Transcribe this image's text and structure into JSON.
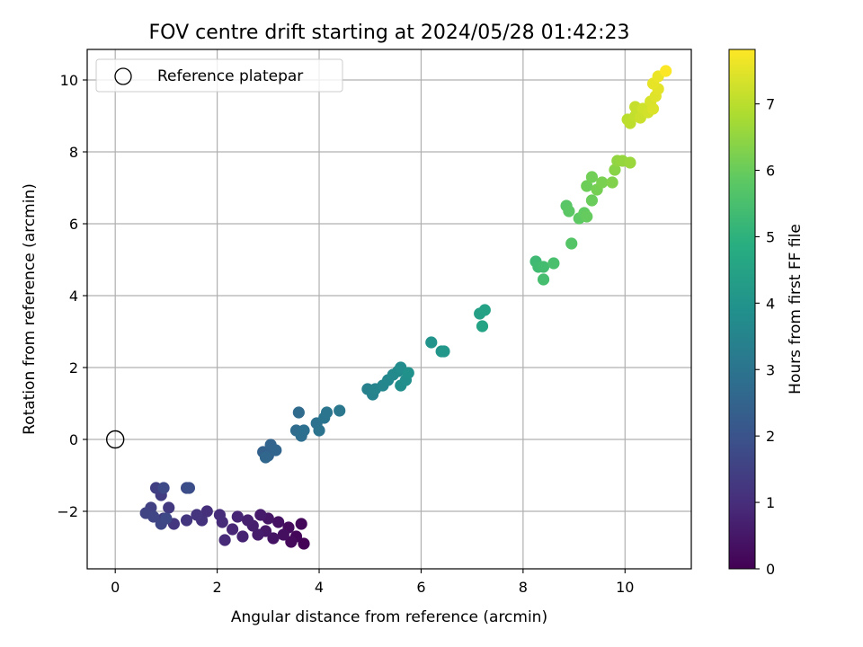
{
  "chart_data": {
    "type": "scatter",
    "title": "FOV centre drift starting at 2024/05/28 01:42:23",
    "xlabel": "Angular distance from reference (arcmin)",
    "ylabel": "Rotation from reference (arcmin)",
    "xlim": [
      -0.55,
      11.3
    ],
    "ylim": [
      -3.6,
      10.85
    ],
    "xticks": [
      0,
      2,
      4,
      6,
      8,
      10
    ],
    "yticks": [
      -2,
      0,
      2,
      4,
      6,
      8,
      10
    ],
    "xtick_labels": [
      "0",
      "2",
      "4",
      "6",
      "8",
      "10"
    ],
    "ytick_labels": [
      "−2",
      "0",
      "2",
      "4",
      "6",
      "8",
      "10"
    ],
    "grid": true,
    "legend": {
      "position": "upper-left",
      "entries": [
        "Reference platepar"
      ]
    },
    "reference_point": {
      "x": 0,
      "y": 0
    },
    "colorbar": {
      "label": "Hours from first FF file",
      "range": [
        0,
        7.82
      ],
      "ticks": [
        0,
        1,
        2,
        3,
        4,
        5,
        6,
        7
      ],
      "tick_labels": [
        "0",
        "1",
        "2",
        "3",
        "4",
        "5",
        "6",
        "7"
      ],
      "colormap": "viridis"
    },
    "series": [
      {
        "points": [
          {
            "x": 3.7,
            "y": -2.9,
            "h": 0.05
          },
          {
            "x": 3.55,
            "y": -2.7,
            "h": 0.1
          },
          {
            "x": 3.65,
            "y": -2.35,
            "h": 0.15
          },
          {
            "x": 3.45,
            "y": -2.85,
            "h": 0.2
          },
          {
            "x": 3.4,
            "y": -2.45,
            "h": 0.25
          },
          {
            "x": 3.3,
            "y": -2.65,
            "h": 0.3
          },
          {
            "x": 3.2,
            "y": -2.3,
            "h": 0.35
          },
          {
            "x": 3.1,
            "y": -2.75,
            "h": 0.4
          },
          {
            "x": 3.0,
            "y": -2.2,
            "h": 0.45
          },
          {
            "x": 2.95,
            "y": -2.55,
            "h": 0.5
          },
          {
            "x": 2.85,
            "y": -2.1,
            "h": 0.55
          },
          {
            "x": 2.8,
            "y": -2.65,
            "h": 0.6
          },
          {
            "x": 2.7,
            "y": -2.4,
            "h": 0.65
          },
          {
            "x": 2.6,
            "y": -2.25,
            "h": 0.7
          },
          {
            "x": 2.5,
            "y": -2.7,
            "h": 0.75
          },
          {
            "x": 2.4,
            "y": -2.15,
            "h": 0.8
          },
          {
            "x": 2.3,
            "y": -2.5,
            "h": 0.85
          },
          {
            "x": 2.15,
            "y": -2.8,
            "h": 0.9
          },
          {
            "x": 2.1,
            "y": -2.3,
            "h": 0.95
          },
          {
            "x": 2.05,
            "y": -2.1,
            "h": 1.0
          },
          {
            "x": 1.8,
            "y": -2.0,
            "h": 1.05
          },
          {
            "x": 1.7,
            "y": -2.25,
            "h": 1.1
          },
          {
            "x": 1.6,
            "y": -2.1,
            "h": 1.15
          },
          {
            "x": 1.4,
            "y": -2.25,
            "h": 1.2
          },
          {
            "x": 1.15,
            "y": -2.35,
            "h": 1.25
          },
          {
            "x": 1.05,
            "y": -1.9,
            "h": 1.3
          },
          {
            "x": 0.95,
            "y": -2.2,
            "h": 1.35
          },
          {
            "x": 0.9,
            "y": -1.55,
            "h": 1.4
          },
          {
            "x": 0.8,
            "y": -1.35,
            "h": 1.45
          },
          {
            "x": 0.7,
            "y": -1.9,
            "h": 1.5
          },
          {
            "x": 0.6,
            "y": -2.05,
            "h": 1.55
          },
          {
            "x": 0.75,
            "y": -2.15,
            "h": 1.6
          },
          {
            "x": 0.9,
            "y": -2.35,
            "h": 1.65
          },
          {
            "x": 1.0,
            "y": -2.2,
            "h": 1.7
          },
          {
            "x": 0.95,
            "y": -1.35,
            "h": 1.75
          },
          {
            "x": 1.4,
            "y": -1.35,
            "h": 1.8
          },
          {
            "x": 1.45,
            "y": -1.35,
            "h": 1.85
          },
          {
            "x": 2.9,
            "y": -0.35,
            "h": 2.4
          },
          {
            "x": 3.0,
            "y": -0.45,
            "h": 2.45
          },
          {
            "x": 3.05,
            "y": -0.15,
            "h": 2.5
          },
          {
            "x": 3.15,
            "y": -0.3,
            "h": 2.55
          },
          {
            "x": 2.95,
            "y": -0.5,
            "h": 2.6
          },
          {
            "x": 3.6,
            "y": 0.75,
            "h": 2.7
          },
          {
            "x": 3.55,
            "y": 0.25,
            "h": 2.75
          },
          {
            "x": 3.65,
            "y": 0.1,
            "h": 2.8
          },
          {
            "x": 3.7,
            "y": 0.25,
            "h": 2.85
          },
          {
            "x": 3.95,
            "y": 0.45,
            "h": 2.9
          },
          {
            "x": 4.0,
            "y": 0.25,
            "h": 2.95
          },
          {
            "x": 4.1,
            "y": 0.6,
            "h": 3.0
          },
          {
            "x": 4.15,
            "y": 0.75,
            "h": 3.05
          },
          {
            "x": 4.4,
            "y": 0.8,
            "h": 3.1
          },
          {
            "x": 4.95,
            "y": 1.4,
            "h": 3.4
          },
          {
            "x": 5.05,
            "y": 1.25,
            "h": 3.45
          },
          {
            "x": 5.1,
            "y": 1.4,
            "h": 3.5
          },
          {
            "x": 5.25,
            "y": 1.5,
            "h": 3.55
          },
          {
            "x": 5.35,
            "y": 1.65,
            "h": 3.6
          },
          {
            "x": 5.45,
            "y": 1.8,
            "h": 3.65
          },
          {
            "x": 5.55,
            "y": 1.9,
            "h": 3.7
          },
          {
            "x": 5.6,
            "y": 2.0,
            "h": 3.75
          },
          {
            "x": 5.6,
            "y": 1.5,
            "h": 3.8
          },
          {
            "x": 5.7,
            "y": 1.65,
            "h": 3.85
          },
          {
            "x": 5.75,
            "y": 1.85,
            "h": 3.9
          },
          {
            "x": 6.2,
            "y": 2.7,
            "h": 4.0
          },
          {
            "x": 6.4,
            "y": 2.45,
            "h": 4.05
          },
          {
            "x": 6.45,
            "y": 2.45,
            "h": 4.1
          },
          {
            "x": 7.15,
            "y": 3.5,
            "h": 4.4
          },
          {
            "x": 7.25,
            "y": 3.6,
            "h": 4.45
          },
          {
            "x": 7.2,
            "y": 3.15,
            "h": 4.5
          },
          {
            "x": 8.25,
            "y": 4.95,
            "h": 5.3
          },
          {
            "x": 8.3,
            "y": 4.8,
            "h": 5.35
          },
          {
            "x": 8.4,
            "y": 4.8,
            "h": 5.4
          },
          {
            "x": 8.4,
            "y": 4.45,
            "h": 5.45
          },
          {
            "x": 8.6,
            "y": 4.9,
            "h": 5.5
          },
          {
            "x": 8.95,
            "y": 5.45,
            "h": 5.7
          },
          {
            "x": 8.85,
            "y": 6.5,
            "h": 5.75
          },
          {
            "x": 8.9,
            "y": 6.35,
            "h": 5.8
          },
          {
            "x": 9.1,
            "y": 6.15,
            "h": 5.85
          },
          {
            "x": 9.2,
            "y": 6.3,
            "h": 5.9
          },
          {
            "x": 9.25,
            "y": 6.2,
            "h": 5.95
          },
          {
            "x": 9.35,
            "y": 6.65,
            "h": 6.0
          },
          {
            "x": 9.25,
            "y": 7.05,
            "h": 6.05
          },
          {
            "x": 9.35,
            "y": 7.3,
            "h": 6.1
          },
          {
            "x": 9.45,
            "y": 6.95,
            "h": 6.15
          },
          {
            "x": 9.55,
            "y": 7.15,
            "h": 6.2
          },
          {
            "x": 9.75,
            "y": 7.15,
            "h": 6.3
          },
          {
            "x": 9.8,
            "y": 7.5,
            "h": 6.4
          },
          {
            "x": 9.85,
            "y": 7.75,
            "h": 6.5
          },
          {
            "x": 9.95,
            "y": 7.75,
            "h": 6.55
          },
          {
            "x": 10.1,
            "y": 7.7,
            "h": 6.6
          },
          {
            "x": 10.05,
            "y": 8.9,
            "h": 7.0
          },
          {
            "x": 10.1,
            "y": 8.8,
            "h": 7.05
          },
          {
            "x": 10.2,
            "y": 9.0,
            "h": 7.1
          },
          {
            "x": 10.2,
            "y": 9.25,
            "h": 7.15
          },
          {
            "x": 10.3,
            "y": 8.95,
            "h": 7.2
          },
          {
            "x": 10.35,
            "y": 9.2,
            "h": 7.25
          },
          {
            "x": 10.45,
            "y": 9.1,
            "h": 7.3
          },
          {
            "x": 10.5,
            "y": 9.4,
            "h": 7.35
          },
          {
            "x": 10.55,
            "y": 9.2,
            "h": 7.4
          },
          {
            "x": 10.6,
            "y": 9.55,
            "h": 7.45
          },
          {
            "x": 10.65,
            "y": 9.75,
            "h": 7.5
          },
          {
            "x": 10.55,
            "y": 9.9,
            "h": 7.55
          },
          {
            "x": 10.65,
            "y": 10.1,
            "h": 7.6
          },
          {
            "x": 10.8,
            "y": 10.25,
            "h": 7.8
          }
        ]
      }
    ]
  }
}
